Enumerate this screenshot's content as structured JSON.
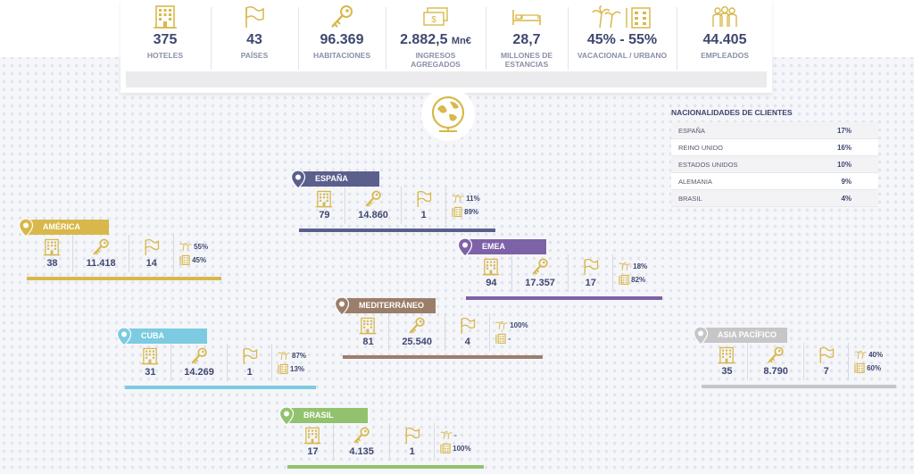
{
  "stats": [
    {
      "value": "375",
      "unit": "",
      "label": "HOTELES",
      "icon": "hotel-icon"
    },
    {
      "value": "43",
      "unit": "",
      "label": "PAÍSES",
      "icon": "flag-icon"
    },
    {
      "value": "96.369",
      "unit": "",
      "label": "HABITACIONES",
      "icon": "key-icon"
    },
    {
      "value": "2.882,5",
      "unit": "Mn€",
      "label": "INGRESOS AGREGADOS",
      "icon": "money-icon"
    },
    {
      "value": "28,7",
      "unit": "",
      "label": "MILLONES DE ESTANCIAS",
      "icon": "bed-icon"
    },
    {
      "value": "45% - 55%",
      "unit": "",
      "label": "VACACIONAL / URBANO",
      "icon": "palm-building-icon"
    },
    {
      "value": "44.405",
      "unit": "",
      "label": "EMPLEADOS",
      "icon": "people-icon"
    }
  ],
  "nationalities": {
    "title": "NACIONALIDADES DE CLIENTES",
    "rows": [
      {
        "name": "ESPAÑA",
        "pct": "17%"
      },
      {
        "name": "REINO UNIDO",
        "pct": "16%"
      },
      {
        "name": "ESTADOS UNIDOS",
        "pct": "10%"
      },
      {
        "name": "ALEMANIA",
        "pct": "9%"
      },
      {
        "name": "BRASIL",
        "pct": "4%"
      }
    ]
  },
  "regions": [
    {
      "name": "ESPAÑA",
      "color": "#5a5f8c",
      "hotels": "79",
      "rooms": "14.860",
      "countries": "1",
      "vac": "11%",
      "urb": "89%"
    },
    {
      "name": "AMÉRICA",
      "color": "#d8b84a",
      "hotels": "38",
      "rooms": "11.418",
      "countries": "14",
      "vac": "55%",
      "urb": "45%"
    },
    {
      "name": "EMEA",
      "color": "#7e62a8",
      "hotels": "94",
      "rooms": "17.357",
      "countries": "17",
      "vac": "18%",
      "urb": "82%"
    },
    {
      "name": "MEDITERRÁNEO",
      "color": "#9b7e6a",
      "hotels": "81",
      "rooms": "25.540",
      "countries": "4",
      "vac": "100%",
      "urb": "-"
    },
    {
      "name": "CUBA",
      "color": "#7ccbe0",
      "hotels": "31",
      "rooms": "14.269",
      "countries": "1",
      "vac": "87%",
      "urb": "13%"
    },
    {
      "name": "ASIA PACÍFICO",
      "color": "#c6c6c8",
      "hotels": "35",
      "rooms": "8.790",
      "countries": "7",
      "vac": "40%",
      "urb": "60%"
    },
    {
      "name": "BRASIL",
      "color": "#92c26e",
      "hotels": "17",
      "rooms": "4.135",
      "countries": "1",
      "vac": "-",
      "urb": "100%"
    }
  ],
  "colors": {
    "gold": "#d8b84a",
    "navy": "#3f4770"
  }
}
